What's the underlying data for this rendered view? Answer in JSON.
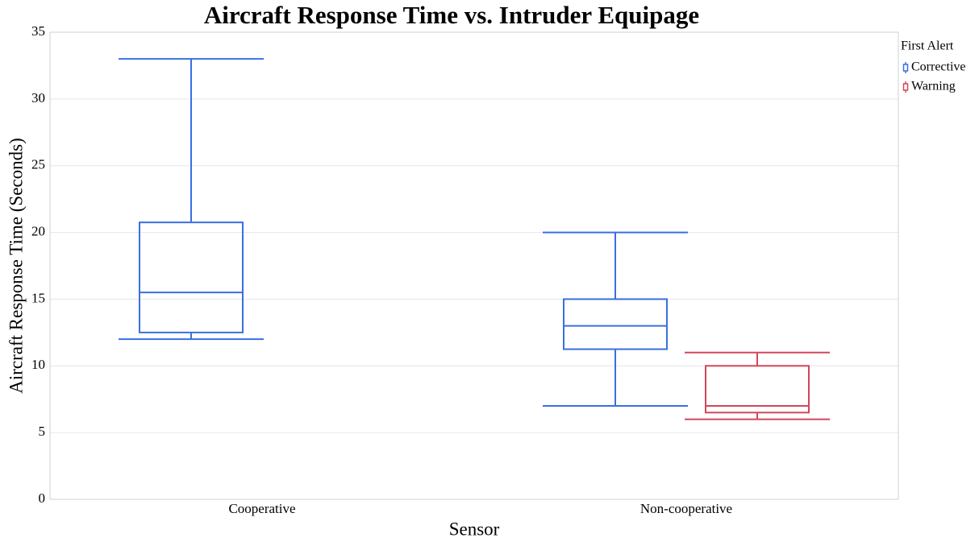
{
  "chart_data": {
    "type": "box",
    "title": "Aircraft Response Time vs. Intruder Equipage",
    "xlabel": "Sensor",
    "ylabel": "Aircraft Response Time (Seconds)",
    "categories": [
      "Cooperative",
      "Non-cooperative"
    ],
    "legend_title": "First Alert",
    "legend_position": "right",
    "grid": true,
    "ylim": [
      0,
      35
    ],
    "yticks": [
      0,
      5,
      10,
      15,
      20,
      25,
      30,
      35
    ],
    "series": [
      {
        "name": "Corrective",
        "color": "#3a6fe0",
        "min": [
          12,
          7
        ],
        "q1": [
          12.5,
          11.25
        ],
        "median": [
          15.5,
          13
        ],
        "q3": [
          20.75,
          15
        ],
        "max": [
          33,
          20
        ]
      },
      {
        "name": "Warning",
        "color": "#d0485a",
        "min": [
          null,
          6
        ],
        "q1": [
          null,
          6.5
        ],
        "median": [
          null,
          7
        ],
        "q3": [
          null,
          10
        ],
        "max": [
          null,
          11
        ]
      }
    ]
  }
}
